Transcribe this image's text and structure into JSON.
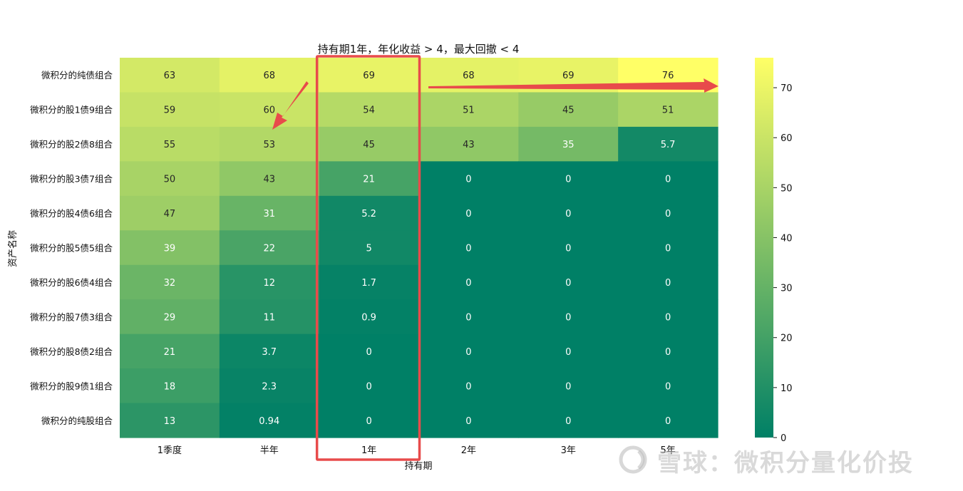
{
  "chart_data": {
    "type": "heatmap",
    "title": "持有期1年，年化收益 > 4，最大回撤 < 4",
    "xlabel": "持有期",
    "ylabel": "资产名称",
    "x": [
      "1季度",
      "半年",
      "1年",
      "2年",
      "3年",
      "5年"
    ],
    "y": [
      "微积分的纯债组合",
      "微积分的股1债9组合",
      "微积分的股2债8组合",
      "微积分的股3债7组合",
      "微积分的股4债6组合",
      "微积分的股5债5组合",
      "微积分的股6债4组合",
      "微积分的股7债3组合",
      "微积分的股8债2组合",
      "微积分的股9债1组合",
      "微积分的纯股组合"
    ],
    "values": [
      [
        63,
        68,
        69,
        68,
        69,
        76
      ],
      [
        59,
        60,
        54,
        51,
        45,
        51
      ],
      [
        55,
        53,
        45,
        43,
        35,
        5.7
      ],
      [
        50,
        43,
        21,
        0,
        0,
        0
      ],
      [
        47,
        31,
        5.2,
        0,
        0,
        0
      ],
      [
        39,
        22,
        5,
        0,
        0,
        0
      ],
      [
        32,
        12,
        1.7,
        0,
        0,
        0
      ],
      [
        29,
        11,
        0.9,
        0,
        0,
        0
      ],
      [
        21,
        3.7,
        0,
        0,
        0,
        0
      ],
      [
        18,
        2.3,
        0,
        0,
        0,
        0
      ],
      [
        13,
        0.94,
        0,
        0,
        0,
        0
      ]
    ],
    "colorbar": {
      "min": 0,
      "max": 76,
      "ticks": [
        0,
        10,
        20,
        30,
        40,
        50,
        60,
        70
      ]
    },
    "colormap": "summer",
    "highlight_column": "1年",
    "annotation_color": "#e84b4b"
  },
  "watermark": "雪球：微积分量化价投"
}
